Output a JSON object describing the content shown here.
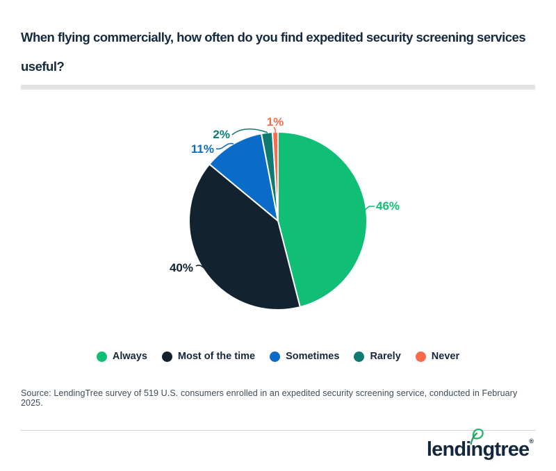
{
  "page": {
    "title": "When flying commercially, how often do you find expedited security screening services useful?"
  },
  "chart_data": {
    "type": "pie",
    "title": "When flying commercially, how often do you find expedited security screening services useful?",
    "categories": [
      "Always",
      "Most of the time",
      "Sometimes",
      "Rarely",
      "Never"
    ],
    "values": [
      46,
      40,
      11,
      2,
      1
    ],
    "labels": [
      "46%",
      "40%",
      "11%",
      "2%",
      "1%"
    ],
    "colors": [
      "#10be76",
      "#13222f",
      "#0a6cc8",
      "#0e7a72",
      "#fa6a4d"
    ],
    "unit": "%",
    "start_position": "12 o'clock, clockwise",
    "legend_position": "bottom",
    "total": 100
  },
  "source": {
    "text": "Source: LendingTree survey of 519 U.S. consumers enrolled in an expedited security screening service, conducted in February 2025."
  },
  "footer": {
    "brand": "lendingtree",
    "registered_mark": "®"
  },
  "palette": {
    "title_text": "#15293f",
    "legend_text": "#16273c",
    "source_text": "#3d4b58",
    "divider_bar": "#e3e3e3",
    "footer_rule": "#d2d2d2",
    "logo_navy": "#13273d",
    "logo_leaf_green": "#28b96d",
    "background": "#ffffff"
  }
}
